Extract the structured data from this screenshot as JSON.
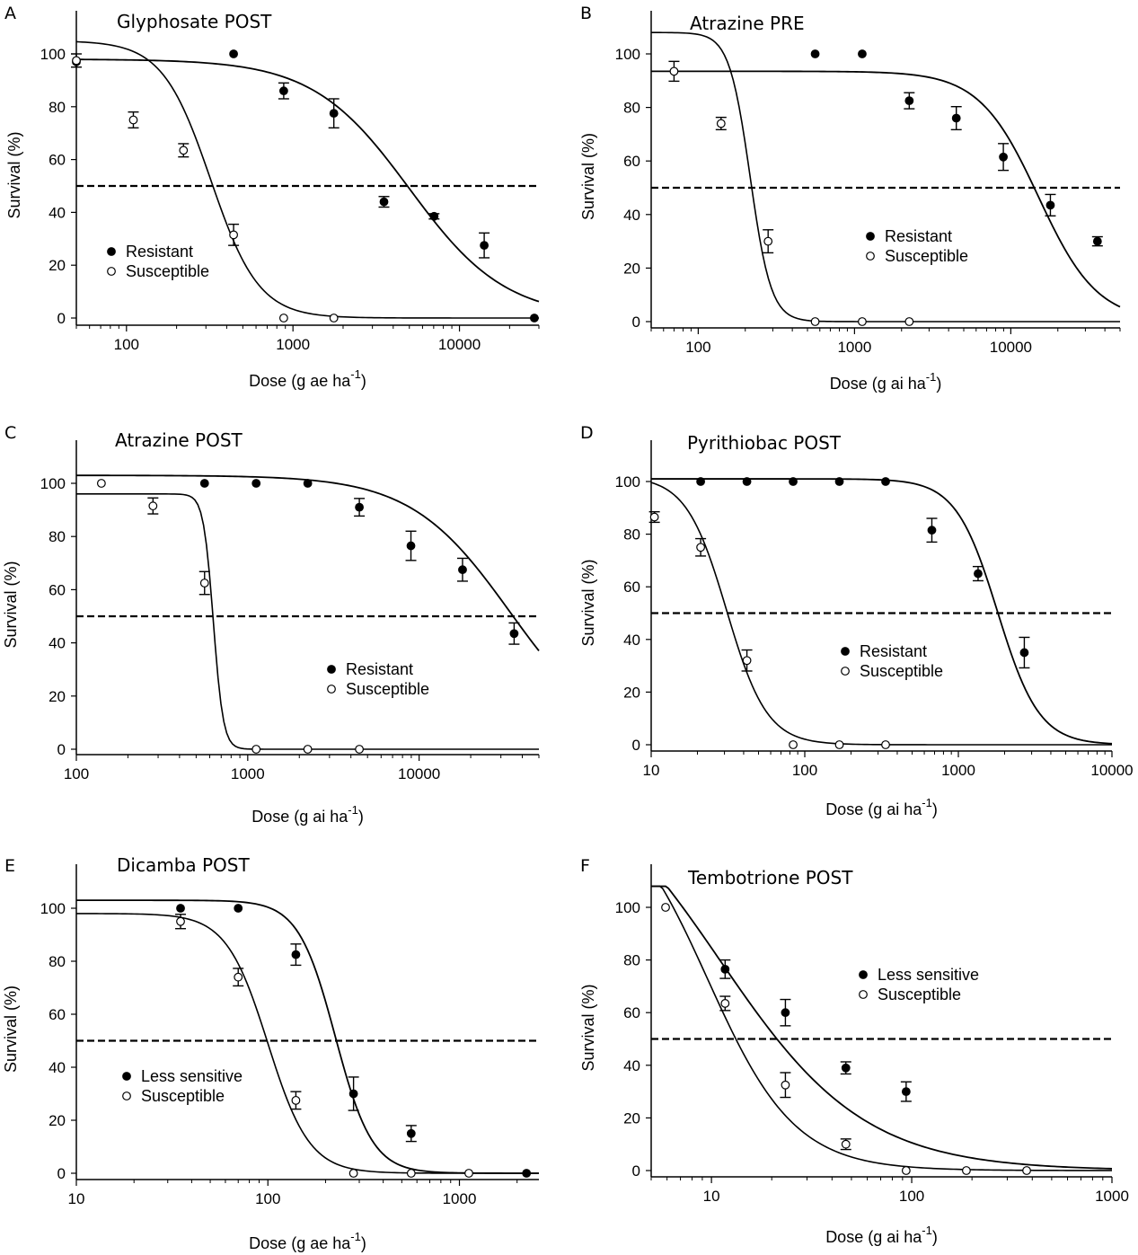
{
  "chart_data": [
    {
      "panel": "A",
      "type": "scatter",
      "title": "Glyphosate POST",
      "xlabel": "Dose (g ae ha",
      "xlabel_sup": "-1",
      "xlabel_close": ")",
      "ylabel": "Survival (%)",
      "xscale": "log",
      "xlim": [
        50,
        30000
      ],
      "ylim": [
        -3,
        110
      ],
      "xticks": [
        100,
        1000,
        10000
      ],
      "xticklabels": [
        "100",
        "1000",
        "10000"
      ],
      "yticks": [
        0,
        20,
        40,
        60,
        80,
        100
      ],
      "yticklabels": [
        "0",
        "20",
        "40",
        "60",
        "80",
        "100"
      ],
      "reference_line": 50,
      "legend": "left",
      "series": [
        {
          "name": "Resistant",
          "marker": "filled",
          "x": [
            50,
            440,
            880,
            1760,
            3520,
            7040,
            14080,
            28160
          ],
          "y": [
            97,
            100,
            86,
            77.5,
            44,
            38.5,
            27.5,
            0
          ],
          "err": [
            0,
            0,
            3,
            5.5,
            2,
            1,
            4.7,
            0
          ],
          "fit": {
            "top": 98,
            "bottom": 0,
            "ed50": 5000,
            "slope": 1.5
          }
        },
        {
          "name": "Susceptible",
          "marker": "open",
          "x": [
            50,
            110,
            220,
            440,
            880,
            1760
          ],
          "y": [
            97.5,
            75,
            63.5,
            31.5,
            0,
            0
          ],
          "err": [
            2.5,
            3,
            2.5,
            4,
            0,
            0
          ],
          "fit": {
            "top": 105,
            "bottom": 0,
            "ed50": 320,
            "slope": 3
          }
        }
      ]
    },
    {
      "panel": "B",
      "type": "scatter",
      "title": "Atrazine PRE",
      "xlabel": "Dose (g ai ha",
      "xlabel_sup": "-1",
      "xlabel_close": ")",
      "ylabel": "Survival (%)",
      "xscale": "log",
      "xlim": [
        50,
        50000
      ],
      "ylim": [
        -3,
        110
      ],
      "xticks": [
        100,
        1000,
        10000
      ],
      "xticklabels": [
        "100",
        "1000",
        "10000"
      ],
      "yticks": [
        0,
        20,
        40,
        60,
        80,
        100
      ],
      "yticklabels": [
        "0",
        "20",
        "40",
        "60",
        "80",
        "100"
      ],
      "reference_line": 50,
      "legend": "center-right",
      "series": [
        {
          "name": "Resistant",
          "marker": "filled",
          "x": [
            560,
            1120,
            2240,
            4480,
            8960,
            17920,
            35840
          ],
          "y": [
            100,
            100,
            82.5,
            76,
            61.5,
            43.5,
            30
          ],
          "err": [
            0,
            0,
            3,
            4.3,
            5,
            4,
            1.7
          ],
          "fit": {
            "top": 93.5,
            "bottom": 0,
            "ed50": 15000,
            "slope": 2.3
          }
        },
        {
          "name": "Susceptible",
          "marker": "open",
          "x": [
            70,
            140,
            280,
            560,
            1120,
            2240
          ],
          "y": [
            93.5,
            74,
            30,
            0,
            0,
            0
          ],
          "err": [
            3.7,
            2.3,
            4.3,
            0,
            0,
            0
          ],
          "fit": {
            "top": 108,
            "bottom": 0,
            "ed50": 215,
            "slope": 6.5
          }
        }
      ]
    },
    {
      "panel": "C",
      "type": "scatter",
      "title": "Atrazine POST",
      "xlabel": "Dose (g ai ha",
      "xlabel_sup": "-1",
      "xlabel_close": ")",
      "ylabel": "Survival (%)",
      "xscale": "log",
      "xlim": [
        100,
        50000
      ],
      "ylim": [
        -3,
        110
      ],
      "xticks": [
        100,
        1000,
        10000
      ],
      "xticklabels": [
        "100",
        "1000",
        "10000"
      ],
      "yticks": [
        0,
        20,
        40,
        60,
        80,
        100
      ],
      "yticklabels": [
        "0",
        "20",
        "40",
        "60",
        "80",
        "100"
      ],
      "reference_line": 50,
      "legend": "center-right",
      "series": [
        {
          "name": "Resistant",
          "marker": "filled",
          "x": [
            560,
            1120,
            2240,
            4480,
            8960,
            17920,
            35840
          ],
          "y": [
            100,
            100,
            100,
            91,
            76.5,
            67.5,
            43.5
          ],
          "err": [
            0,
            0,
            0,
            3.3,
            5.5,
            4.3,
            4
          ],
          "fit": {
            "top": 103,
            "bottom": 0,
            "ed50": 34000,
            "slope": 1.5
          }
        },
        {
          "name": "Susceptible",
          "marker": "open",
          "x": [
            140,
            280,
            560,
            1120,
            2240,
            4480
          ],
          "y": [
            100,
            91.5,
            62.5,
            0,
            0,
            0
          ],
          "err": [
            0,
            3,
            4.3,
            0,
            0,
            0
          ],
          "fit": {
            "top": 96,
            "bottom": 0,
            "ed50": 630,
            "slope": 15
          }
        }
      ]
    },
    {
      "panel": "D",
      "type": "scatter",
      "title": "Pyrithiobac POST",
      "xlabel": "Dose (g ai ha",
      "xlabel_sup": "-1",
      "xlabel_close": ")",
      "ylabel": "Survival (%)",
      "xscale": "log",
      "xlim": [
        10,
        10000
      ],
      "ylim": [
        -3,
        110
      ],
      "xticks": [
        10,
        100,
        1000,
        10000
      ],
      "xticklabels": [
        "10",
        "100",
        "1000",
        "10000"
      ],
      "yticks": [
        0,
        20,
        40,
        60,
        80,
        100
      ],
      "yticklabels": [
        "0",
        "20",
        "40",
        "60",
        "80",
        "100"
      ],
      "reference_line": 50,
      "legend": "center",
      "series": [
        {
          "name": "Resistant",
          "marker": "filled",
          "x": [
            21,
            42,
            84,
            168,
            336,
            672,
            1344,
            2688
          ],
          "y": [
            100,
            100,
            100,
            100,
            100,
            81.5,
            65,
            35
          ],
          "err": [
            0,
            0,
            0,
            0,
            0,
            4.5,
            2.7,
            5.8
          ],
          "fit": {
            "top": 101,
            "bottom": 0,
            "ed50": 1800,
            "slope": 3.2
          }
        },
        {
          "name": "Susceptible",
          "marker": "open",
          "x": [
            10.5,
            21,
            42,
            84,
            168,
            336
          ],
          "y": [
            86.5,
            75,
            32,
            0,
            0,
            0
          ],
          "err": [
            2,
            3.3,
            4,
            0,
            0,
            0
          ],
          "fit": {
            "top": 102,
            "bottom": 0,
            "ed50": 31,
            "slope": 3.3
          }
        }
      ]
    },
    {
      "panel": "E",
      "type": "scatter",
      "title": "Dicamba POST",
      "xlabel": "Dose (g ae ha",
      "xlabel_sup": "-1",
      "xlabel_close": ")",
      "ylabel": "Survival (%)",
      "xscale": "log",
      "xlim": [
        10,
        2600
      ],
      "ylim": [
        -3,
        110
      ],
      "xticks": [
        10,
        100,
        1000
      ],
      "xticklabels": [
        "10",
        "100",
        "1000"
      ],
      "yticks": [
        0,
        20,
        40,
        60,
        80,
        100
      ],
      "yticklabels": [
        "0",
        "20",
        "40",
        "60",
        "80",
        "100"
      ],
      "reference_line": 50,
      "legend": "bottom-left",
      "series": [
        {
          "name": "Less sensitive",
          "marker": "filled",
          "x": [
            35,
            70,
            140,
            280,
            560,
            2240
          ],
          "y": [
            100,
            100,
            82.5,
            30,
            15,
            0
          ],
          "err": [
            0,
            0,
            4,
            6.3,
            3,
            0
          ],
          "fit": {
            "top": 103,
            "bottom": 0,
            "ed50": 225,
            "slope": 4.5
          }
        },
        {
          "name": "Susceptible",
          "marker": "open",
          "x": [
            35,
            70,
            140,
            280,
            560,
            1120
          ],
          "y": [
            95,
            74,
            27.5,
            0,
            0,
            0
          ],
          "err": [
            2.7,
            3.3,
            3.3,
            0,
            0,
            0
          ],
          "fit": {
            "top": 98,
            "bottom": 0,
            "ed50": 100,
            "slope": 4
          }
        }
      ]
    },
    {
      "panel": "F",
      "type": "scatter",
      "title": "Tembotrione POST",
      "xlabel": "Dose (g ai ha",
      "xlabel_sup": "-1",
      "xlabel_close": ")",
      "ylabel": "Survival (%)",
      "xscale": "log",
      "xlim": [
        5,
        1000
      ],
      "ylim": [
        -3,
        110
      ],
      "xticks": [
        10,
        100,
        1000
      ],
      "xticklabels": [
        "10",
        "100",
        "1000"
      ],
      "yticks": [
        0,
        20,
        40,
        60,
        80,
        100
      ],
      "yticklabels": [
        "0",
        "20",
        "40",
        "60",
        "80",
        "100"
      ],
      "reference_line": 50,
      "legend": "top-center",
      "series": [
        {
          "name": "Less sensitive",
          "marker": "filled",
          "x": [
            11.7,
            23.4,
            46.9,
            93.8
          ],
          "y": [
            76.5,
            60,
            39,
            30
          ],
          "err": [
            3.5,
            5,
            2.3,
            3.7
          ],
          "fit": {
            "top": 160,
            "bottom": 0,
            "ed50": 11,
            "slope": 1.2
          }
        },
        {
          "name": "Susceptible",
          "marker": "open",
          "x": [
            5.9,
            11.7,
            23.4,
            46.9,
            93.8,
            187.5,
            375
          ],
          "y": [
            100,
            63.5,
            32.5,
            10,
            0,
            0,
            0
          ],
          "err": [
            0,
            2.7,
            4.7,
            2,
            0,
            0,
            0
          ],
          "fit": {
            "top": 145,
            "bottom": 0,
            "ed50": 9.6,
            "slope": 2
          }
        }
      ]
    }
  ]
}
